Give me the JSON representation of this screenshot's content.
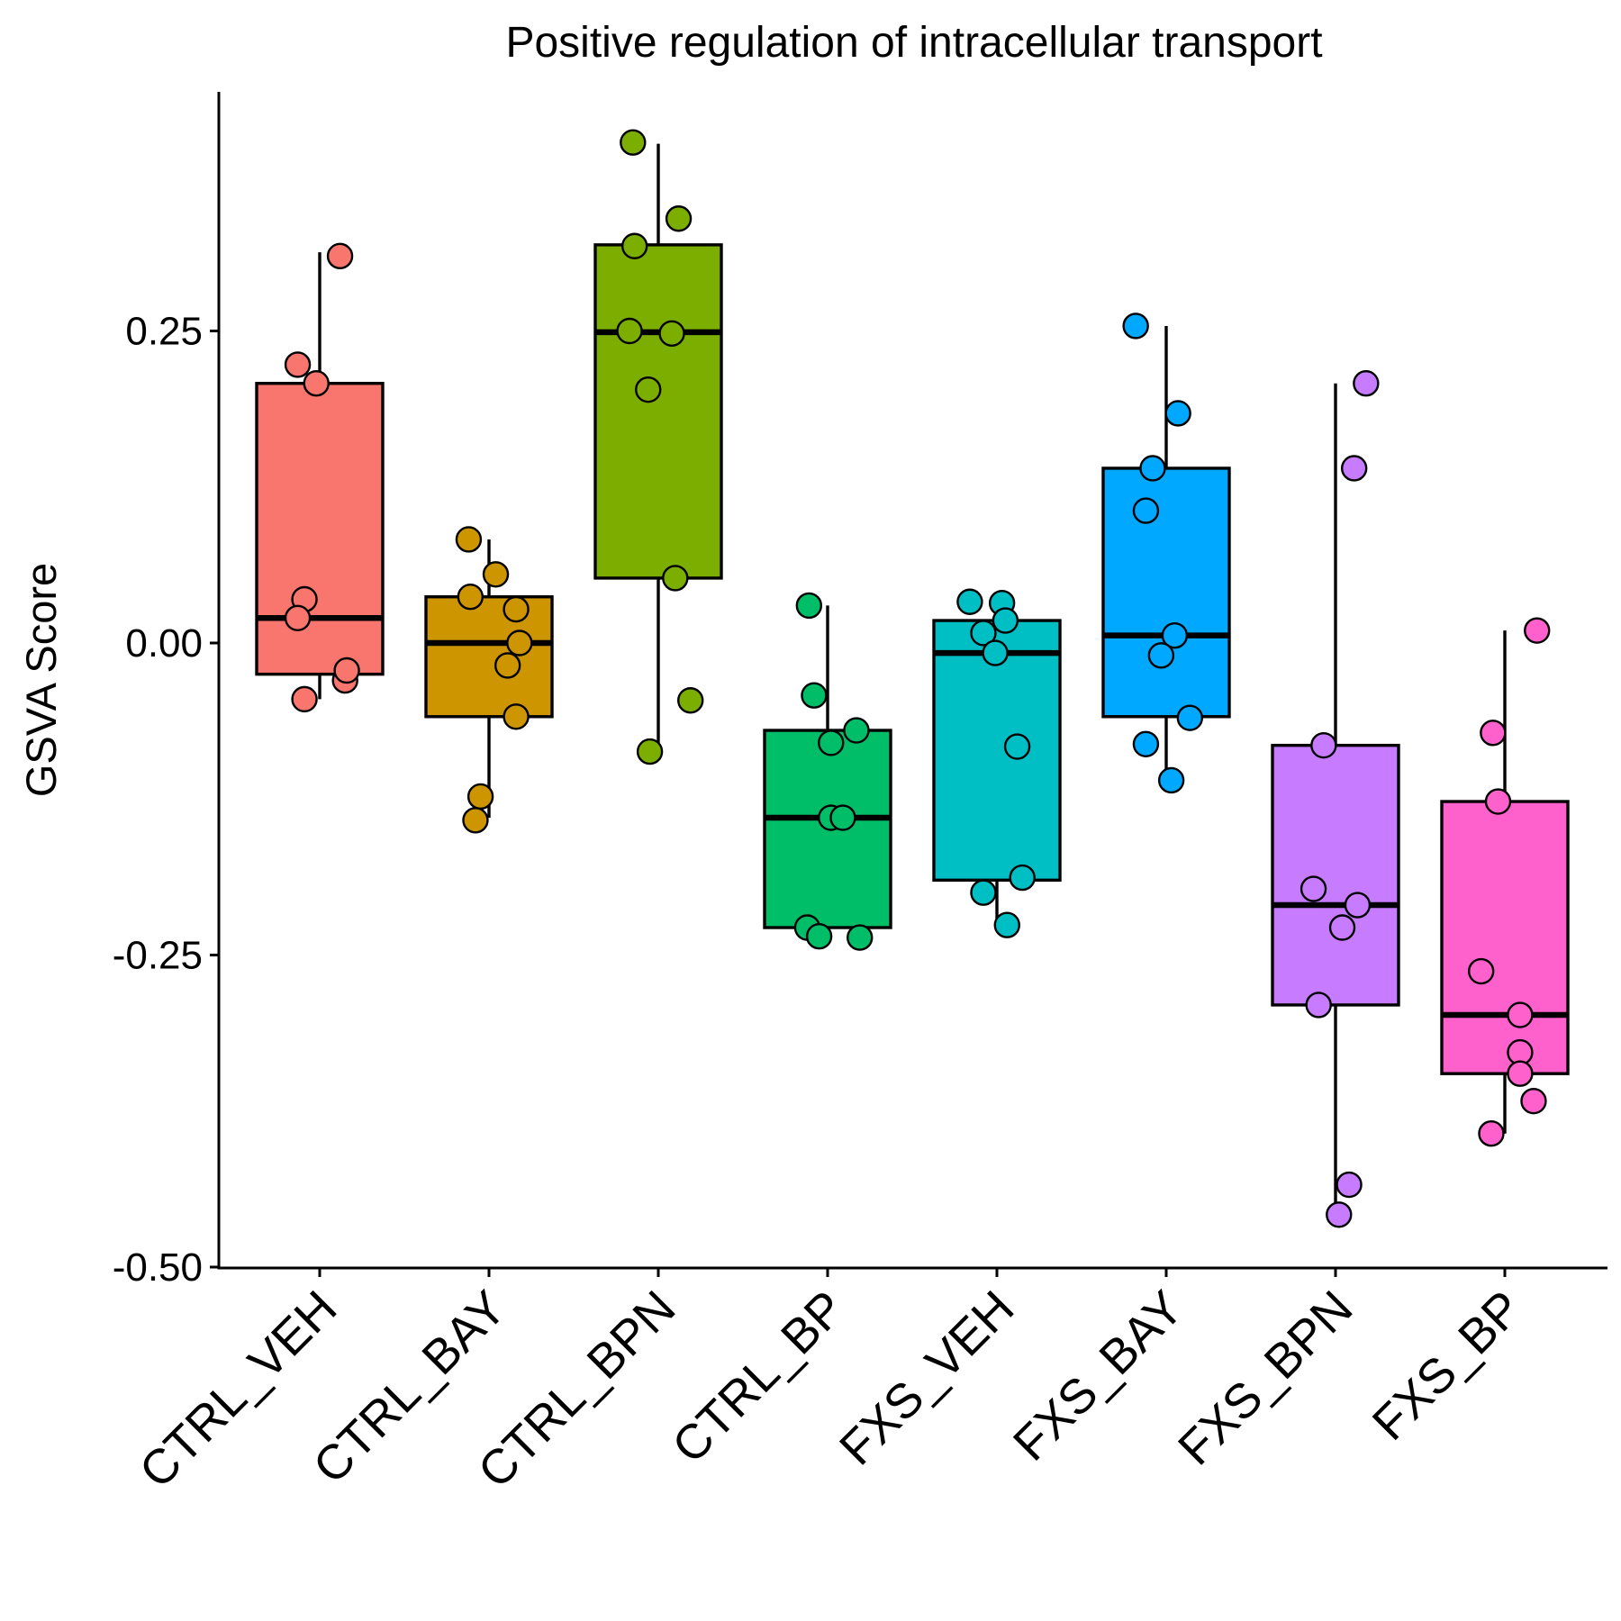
{
  "chart_data": {
    "type": "box",
    "title": "Positive regulation of intracellular transport",
    "xlabel": "",
    "ylabel": "GSVA Score",
    "ylim": [
      -0.5,
      0.43
    ],
    "yticks": [
      0.25,
      0.0,
      -0.25,
      -0.5
    ],
    "ytick_labels": [
      "0.25",
      "0.00",
      "-0.25",
      "-0.50"
    ],
    "grid": false,
    "legend": "none",
    "categories": [
      "CTRL_VEH",
      "CTRL_BAY",
      "CTRL_BPN",
      "CTRL_BP",
      "FXS_VEH",
      "FXS_BAY",
      "FXS_BPN",
      "FXS_BP"
    ],
    "colors": [
      "#F8766D",
      "#CD9600",
      "#7CAE00",
      "#00BE67",
      "#00BFC4",
      "#00A9FF",
      "#C77CFF",
      "#FF61CC"
    ],
    "boxes": [
      {
        "q1": -0.025,
        "median": 0.02,
        "q3": 0.208,
        "whisker_low": -0.045,
        "whisker_high": 0.313
      },
      {
        "q1": -0.059,
        "median": 0.0,
        "q3": 0.037,
        "whisker_low": -0.14,
        "whisker_high": 0.083
      },
      {
        "q1": 0.052,
        "median": 0.249,
        "q3": 0.319,
        "whisker_low": -0.088,
        "whisker_high": 0.4
      },
      {
        "q1": -0.228,
        "median": -0.14,
        "q3": -0.07,
        "whisker_low": -0.235,
        "whisker_high": 0.03
      },
      {
        "q1": -0.19,
        "median": -0.008,
        "q3": 0.018,
        "whisker_low": -0.225,
        "whisker_high": 0.033
      },
      {
        "q1": -0.059,
        "median": 0.006,
        "q3": 0.14,
        "whisker_low": -0.11,
        "whisker_high": 0.254
      },
      {
        "q1": -0.29,
        "median": -0.21,
        "q3": -0.082,
        "whisker_low": -0.45,
        "whisker_high": 0.208
      },
      {
        "q1": -0.345,
        "median": -0.298,
        "q3": -0.127,
        "whisker_low": -0.393,
        "whisker_high": 0.01
      }
    ],
    "points": [
      [
        {
          "j": 0.12,
          "y": 0.31
        },
        {
          "j": -0.13,
          "y": 0.223
        },
        {
          "j": -0.02,
          "y": 0.208
        },
        {
          "j": -0.09,
          "y": 0.035
        },
        {
          "j": -0.13,
          "y": 0.02
        },
        {
          "j": 0.15,
          "y": -0.03
        },
        {
          "j": 0.16,
          "y": -0.022
        },
        {
          "j": -0.09,
          "y": -0.045
        }
      ],
      [
        {
          "j": -0.12,
          "y": 0.083
        },
        {
          "j": 0.04,
          "y": 0.055
        },
        {
          "j": -0.11,
          "y": 0.037
        },
        {
          "j": 0.16,
          "y": 0.027
        },
        {
          "j": 0.18,
          "y": 0.0
        },
        {
          "j": 0.11,
          "y": -0.018
        },
        {
          "j": 0.16,
          "y": -0.059
        },
        {
          "j": -0.05,
          "y": -0.123
        },
        {
          "j": -0.08,
          "y": -0.142
        }
      ],
      [
        {
          "j": -0.15,
          "y": 0.401
        },
        {
          "j": 0.12,
          "y": 0.34
        },
        {
          "j": -0.14,
          "y": 0.318
        },
        {
          "j": -0.17,
          "y": 0.25
        },
        {
          "j": 0.08,
          "y": 0.248
        },
        {
          "j": -0.06,
          "y": 0.203
        },
        {
          "j": 0.1,
          "y": 0.052
        },
        {
          "j": 0.19,
          "y": -0.046
        },
        {
          "j": -0.05,
          "y": -0.087
        }
      ],
      [
        {
          "j": -0.11,
          "y": 0.03
        },
        {
          "j": -0.08,
          "y": -0.042
        },
        {
          "j": 0.17,
          "y": -0.07
        },
        {
          "j": 0.02,
          "y": -0.08
        },
        {
          "j": 0.02,
          "y": -0.14
        },
        {
          "j": 0.09,
          "y": -0.14
        },
        {
          "j": -0.12,
          "y": -0.228
        },
        {
          "j": -0.05,
          "y": -0.235
        },
        {
          "j": 0.19,
          "y": -0.236
        }
      ],
      [
        {
          "j": -0.16,
          "y": 0.033
        },
        {
          "j": 0.03,
          "y": 0.032
        },
        {
          "j": 0.05,
          "y": 0.018
        },
        {
          "j": -0.08,
          "y": 0.008
        },
        {
          "j": -0.01,
          "y": -0.008
        },
        {
          "j": 0.12,
          "y": -0.083
        },
        {
          "j": 0.15,
          "y": -0.188
        },
        {
          "j": -0.08,
          "y": -0.2
        },
        {
          "j": 0.06,
          "y": -0.226
        }
      ],
      [
        {
          "j": -0.18,
          "y": 0.254
        },
        {
          "j": 0.07,
          "y": 0.184
        },
        {
          "j": -0.08,
          "y": 0.14
        },
        {
          "j": -0.12,
          "y": 0.106
        },
        {
          "j": 0.05,
          "y": 0.006
        },
        {
          "j": -0.03,
          "y": -0.01
        },
        {
          "j": 0.14,
          "y": -0.06
        },
        {
          "j": -0.12,
          "y": -0.081
        },
        {
          "j": 0.03,
          "y": -0.11
        }
      ],
      [
        {
          "j": 0.18,
          "y": 0.208
        },
        {
          "j": 0.11,
          "y": 0.14
        },
        {
          "j": -0.07,
          "y": -0.082
        },
        {
          "j": -0.13,
          "y": -0.197
        },
        {
          "j": 0.13,
          "y": -0.21
        },
        {
          "j": 0.04,
          "y": -0.228
        },
        {
          "j": -0.1,
          "y": -0.29
        },
        {
          "j": 0.08,
          "y": -0.434
        },
        {
          "j": 0.02,
          "y": -0.458
        }
      ],
      [
        {
          "j": 0.19,
          "y": 0.01
        },
        {
          "j": -0.07,
          "y": -0.072
        },
        {
          "j": -0.04,
          "y": -0.127
        },
        {
          "j": -0.14,
          "y": -0.263
        },
        {
          "j": 0.09,
          "y": -0.298
        },
        {
          "j": 0.09,
          "y": -0.328
        },
        {
          "j": 0.09,
          "y": -0.345
        },
        {
          "j": 0.17,
          "y": -0.367
        },
        {
          "j": -0.08,
          "y": -0.393
        }
      ]
    ]
  }
}
